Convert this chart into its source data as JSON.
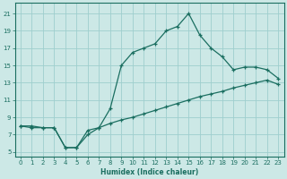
{
  "xlabel": "Humidex (Indice chaleur)",
  "bg_color": "#cce8e6",
  "grid_color": "#9ecece",
  "line_color": "#1a6e60",
  "spine_color": "#1a6e60",
  "xlim": [
    -0.5,
    23.5
  ],
  "ylim": [
    4.5,
    22.2
  ],
  "xticks": [
    0,
    1,
    2,
    3,
    4,
    5,
    6,
    7,
    8,
    9,
    10,
    11,
    12,
    13,
    14,
    15,
    16,
    17,
    18,
    19,
    20,
    21,
    22,
    23
  ],
  "yticks": [
    5,
    7,
    9,
    11,
    13,
    15,
    17,
    19,
    21
  ],
  "curve1_x": [
    0,
    1,
    2,
    3,
    4,
    5,
    6,
    7,
    8,
    9,
    10,
    11,
    12,
    13,
    14,
    15,
    16,
    17,
    18,
    19,
    20,
    21,
    22,
    23
  ],
  "curve1_y": [
    8.0,
    8.0,
    7.8,
    7.8,
    5.5,
    5.5,
    7.5,
    7.8,
    10.0,
    15.0,
    16.5,
    17.0,
    17.5,
    19.0,
    19.5,
    21.0,
    18.5,
    17.0,
    16.0,
    14.5,
    14.8,
    14.8,
    14.5,
    13.5
  ],
  "curve2_x": [
    0,
    1,
    2,
    3,
    4,
    5,
    6,
    7,
    8,
    9,
    10,
    11,
    12,
    13,
    14,
    15,
    16,
    17,
    18,
    19,
    20,
    21,
    22,
    23
  ],
  "curve2_y": [
    8.0,
    7.8,
    7.8,
    7.8,
    5.5,
    5.5,
    7.0,
    7.8,
    8.3,
    8.7,
    9.0,
    9.4,
    9.8,
    10.2,
    10.6,
    11.0,
    11.4,
    11.7,
    12.0,
    12.4,
    12.7,
    13.0,
    13.3,
    12.8
  ]
}
